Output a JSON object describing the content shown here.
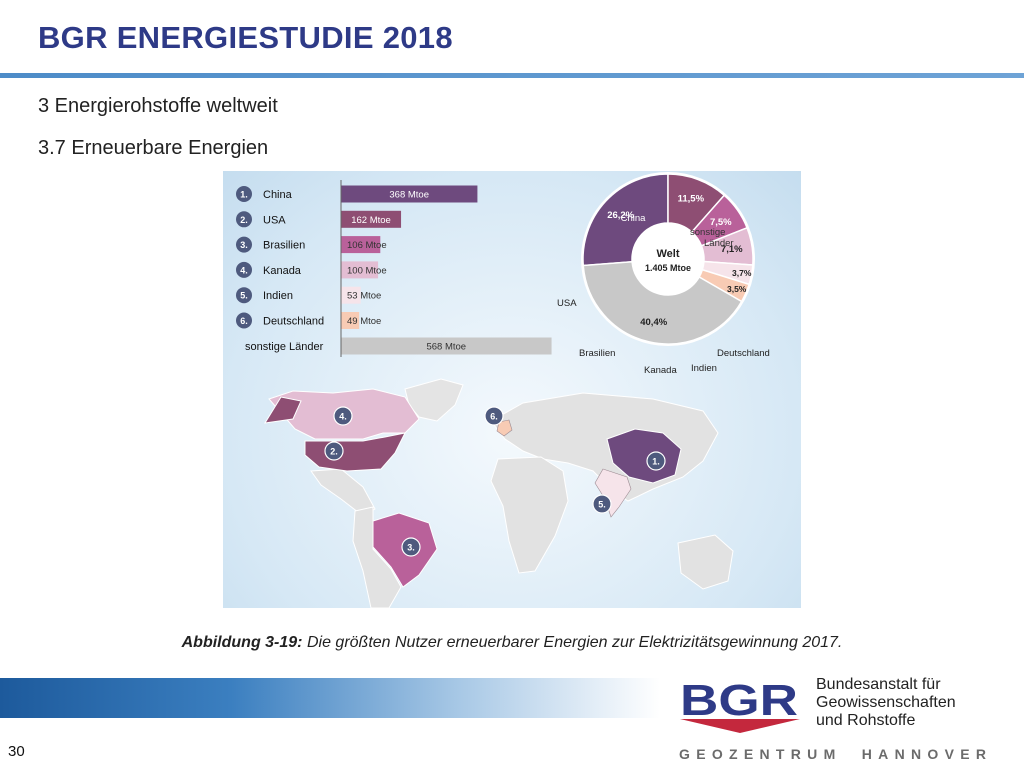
{
  "header": {
    "title": "BGR ENERGIESTUDIE 2018",
    "section": "3 Energierohstoffe weltweit",
    "subsection": "3.7 Erneuerbare Energien"
  },
  "caption": {
    "label": "Abbildung 3-19:",
    "text": " Die größten Nutzer erneuerbarer Energien zur Elektrizitätsgewinnung 2017."
  },
  "footer": {
    "page_number": "30",
    "logo_text": "BGR",
    "institute_lines": [
      "Bundesanstalt für",
      "Geowissenschaften",
      "und Rohstoffe"
    ],
    "geozentrum_words": [
      "GEOZENTRUM",
      "HANNOVER"
    ]
  },
  "colors": {
    "title_blue": "#2e3a87",
    "china": "#6e4a7e",
    "usa": "#8e4e73",
    "brasilien": "#b9619a",
    "kanada": "#e3bdd3",
    "indien": "#f6e4ea",
    "deutschland": "#f8cbb4",
    "sonstige": "#c8c8c8",
    "rank_badge": "#4e5a7e"
  },
  "chart_data": [
    {
      "type": "bar",
      "orientation": "horizontal",
      "unit": "Mtoe",
      "categories": [
        {
          "rank": "1.",
          "name": "China",
          "value": 368,
          "label": "368 Mtoe"
        },
        {
          "rank": "2.",
          "name": "USA",
          "value": 162,
          "label": "162 Mtoe"
        },
        {
          "rank": "3.",
          "name": "Brasilien",
          "value": 106,
          "label": "106 Mtoe"
        },
        {
          "rank": "4.",
          "name": "Kanada",
          "value": 100,
          "label": "100 Mtoe"
        },
        {
          "rank": "5.",
          "name": "Indien",
          "value": 53,
          "label": "53 Mtoe"
        },
        {
          "rank": "6.",
          "name": "Deutschland",
          "value": 49,
          "label": "49 Mtoe"
        },
        {
          "rank": "",
          "name": "sonstige Länder",
          "value": 568,
          "label": "568 Mtoe"
        }
      ]
    },
    {
      "type": "pie",
      "donut": true,
      "center_title": "Welt",
      "center_value": "1.405 Mtoe",
      "slices": [
        {
          "name": "China",
          "percent": 26.2,
          "label": "26,2%"
        },
        {
          "name": "USA",
          "percent": 11.5,
          "label": "11,5%"
        },
        {
          "name": "Brasilien",
          "percent": 7.5,
          "label": "7,5%"
        },
        {
          "name": "Kanada",
          "percent": 7.1,
          "label": "7,1%"
        },
        {
          "name": "Indien",
          "percent": 3.7,
          "label": "3,7%"
        },
        {
          "name": "Deutschland",
          "percent": 3.5,
          "label": "3,5%"
        },
        {
          "name": "sonstige Länder",
          "percent": 40.4,
          "label": "40,4%"
        }
      ],
      "outer_labels": [
        "China",
        "sonstige Länder",
        "USA",
        "Brasilien",
        "Kanada",
        "Indien",
        "Deutschland"
      ]
    },
    {
      "type": "map",
      "markers": [
        "1.",
        "2.",
        "3.",
        "4.",
        "5.",
        "6."
      ]
    }
  ]
}
